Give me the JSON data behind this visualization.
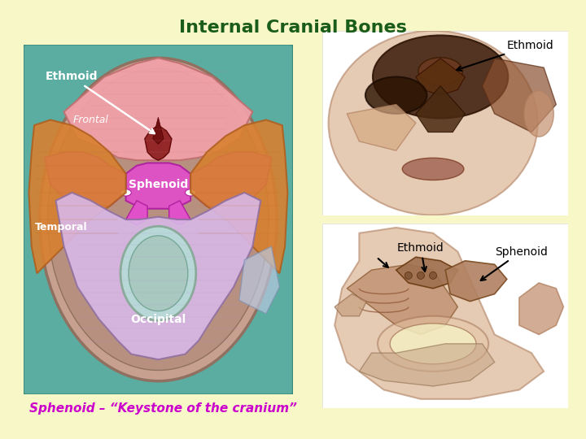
{
  "title": "Internal Cranial Bones",
  "title_color": "#1a5c1a",
  "title_fontsize": 16,
  "title_fontweight": "bold",
  "background_color": "#f7f7c8",
  "subtitle_text": "Sphenoid – “Keystone of the cranium”",
  "subtitle_color": "#cc00cc",
  "subtitle_fontsize": 11,
  "skull_bg": "#5aada0",
  "frontal_color": "#f0a0a8",
  "sphenoid_color": "#e050c8",
  "temporal_color": "#d88030",
  "occipital_color": "#d8b8e8",
  "ethmoid_color": "#8b1a1a",
  "foramen_color": "#b8d8d8",
  "skull_border": "#a08080",
  "label_ethmoid": "Ethmoid",
  "label_frontal": "Frontal",
  "label_sphenoid": "Sphenoid",
  "label_temporal": "Temporal",
  "label_occipital": "Occipital",
  "panel_bg": "#ffffff",
  "skin_color": "#d4a882",
  "skin_dark": "#b08060",
  "nasal_dark": "#6b3a1f",
  "ear_color": "#c49070"
}
